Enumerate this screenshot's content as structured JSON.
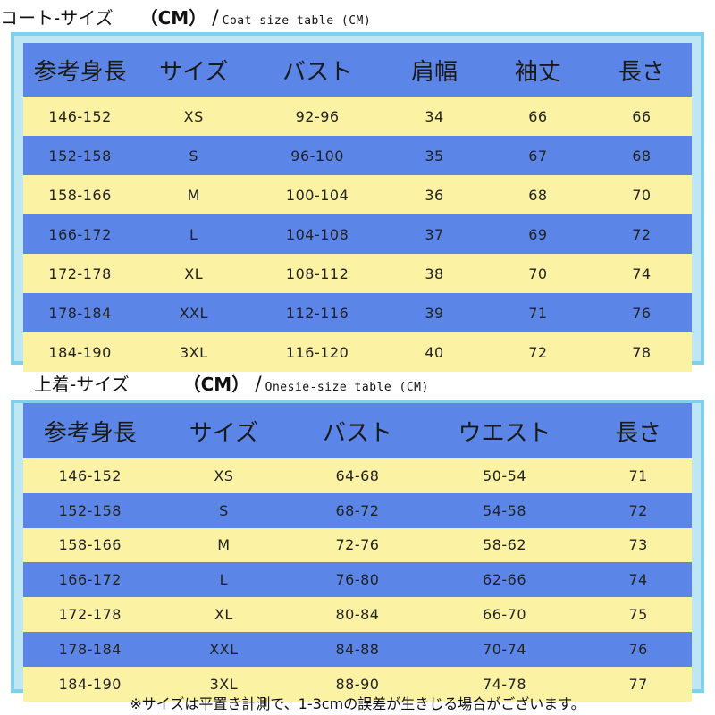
{
  "coat": {
    "title_jp": "コート-サイズ",
    "title_cm": "（CM）",
    "title_slash": "/",
    "title_en": "Coat-size table (CM)",
    "headers": [
      "参考身長",
      "サイズ",
      "バスト",
      "肩幅",
      "袖丈",
      "長さ"
    ],
    "rows": [
      [
        "146-152",
        "XS",
        "92-96",
        "34",
        "66",
        "66"
      ],
      [
        "152-158",
        "S",
        "96-100",
        "35",
        "67",
        "68"
      ],
      [
        "158-166",
        "M",
        "100-104",
        "36",
        "68",
        "70"
      ],
      [
        "166-172",
        "L",
        "104-108",
        "37",
        "69",
        "72"
      ],
      [
        "172-178",
        "XL",
        "108-112",
        "38",
        "70",
        "74"
      ],
      [
        "178-184",
        "XXL",
        "112-116",
        "39",
        "71",
        "76"
      ],
      [
        "184-190",
        "3XL",
        "116-120",
        "40",
        "72",
        "78"
      ]
    ]
  },
  "onesie": {
    "title_jp": "上着-サイズ",
    "title_cm": "（CM）",
    "title_slash": "/",
    "title_en": "Onesie-size table (CM)",
    "headers": [
      "参考身長",
      "サイズ",
      "バスト",
      "ウエスト",
      "長さ"
    ],
    "rows": [
      [
        "146-152",
        "XS",
        "64-68",
        "50-54",
        "71"
      ],
      [
        "152-158",
        "S",
        "68-72",
        "54-58",
        "72"
      ],
      [
        "158-166",
        "M",
        "72-76",
        "58-62",
        "73"
      ],
      [
        "166-172",
        "L",
        "76-80",
        "62-66",
        "74"
      ],
      [
        "172-178",
        "XL",
        "80-84",
        "66-70",
        "75"
      ],
      [
        "178-184",
        "XXL",
        "84-88",
        "70-74",
        "76"
      ],
      [
        "184-190",
        "3XL",
        "88-90",
        "74-78",
        "77"
      ]
    ]
  },
  "footnote": "※サイズは平置き計測で、1-3cmの誤差が生きじる場合がございます。",
  "colors": {
    "blue_row": "#5b86e8",
    "yellow_row": "#fbf2a4",
    "frame": "#7fd0ea"
  }
}
